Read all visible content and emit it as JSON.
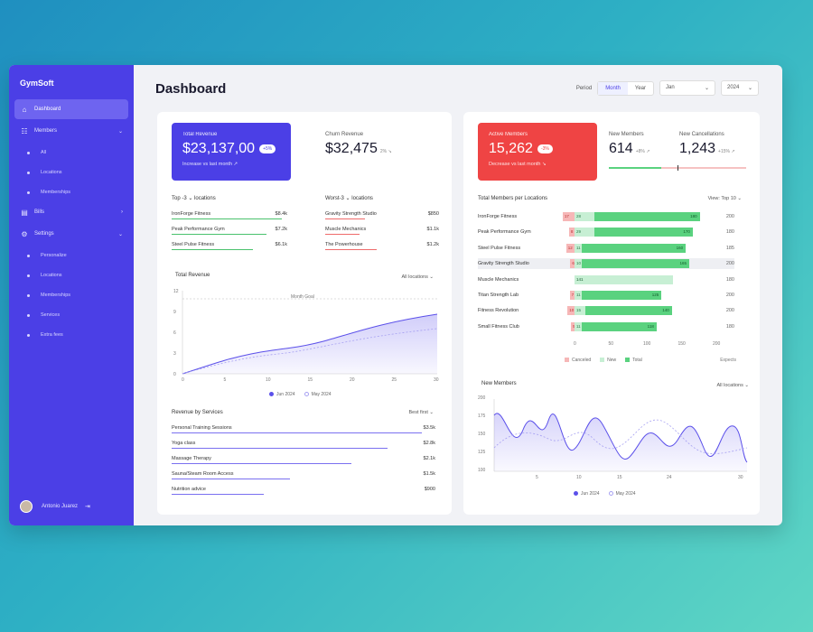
{
  "app": {
    "name": "GymSoft"
  },
  "sidebar": {
    "items": [
      {
        "label": "Dashboard",
        "icon": "home-icon",
        "active": true
      },
      {
        "label": "Members",
        "icon": "members-icon",
        "chev": "⌄"
      },
      {
        "label": "All",
        "sub": true
      },
      {
        "label": "Locations",
        "sub": true
      },
      {
        "label": "Memberships",
        "sub": true
      },
      {
        "label": "Bills",
        "icon": "bills-icon",
        "chev": "›"
      },
      {
        "label": "Settings",
        "icon": "gear-icon",
        "chev": "⌄"
      },
      {
        "label": "Personalize",
        "sub": true
      },
      {
        "label": "Locations",
        "sub": true
      },
      {
        "label": "Memberships",
        "sub": true
      },
      {
        "label": "Services",
        "sub": true
      },
      {
        "label": "Extra fees",
        "sub": true
      }
    ],
    "user": {
      "name": "Antonio Juarez"
    }
  },
  "header": {
    "title": "Dashboard",
    "period_label": "Period",
    "period_options": [
      "Month",
      "Year"
    ],
    "period_selected": "Month",
    "month": "Jan",
    "year": "2024"
  },
  "left": {
    "kpi_total": {
      "label": "Total Revenue",
      "value": "$23,137,00",
      "pill": "+5%",
      "sub": "Increase vs last month ↗"
    },
    "kpi_churn": {
      "label": "Churn Revenue",
      "value": "$32,475",
      "delta": "2% ↘"
    },
    "top3": {
      "title": "Top -3 ⌄ locations",
      "rows": [
        {
          "name": "IronForge Fitness",
          "value": "$8.4k",
          "pct": 0.95
        },
        {
          "name": "Peak Performance Gym",
          "value": "$7.2k",
          "pct": 0.82
        },
        {
          "name": "Steel Pulse Fitness",
          "value": "$6.1k",
          "pct": 0.7
        }
      ]
    },
    "worst3": {
      "title": "Worst-3 ⌄ locations",
      "rows": [
        {
          "name": "Gravity Strength Studio",
          "value": "$850",
          "pct": 0.35
        },
        {
          "name": "Muscle Mechanics",
          "value": "$1.1k",
          "pct": 0.3
        },
        {
          "name": "The Powerhouse",
          "value": "$1.2k",
          "pct": 0.45
        }
      ]
    },
    "revenue_chart": {
      "title": "Total Revenue",
      "filter": "All locations ⌄",
      "annotation": "Month Goal",
      "legend": [
        "Jun 2024",
        "May 2024"
      ],
      "y_ticks": [
        "12",
        "9",
        "6",
        "3",
        "0"
      ],
      "x_ticks": [
        "0",
        "5",
        "10",
        "15",
        "20",
        "25",
        "30"
      ]
    },
    "services": {
      "title": "Revenue by Services",
      "filter": "Best first ⌄",
      "rows": [
        {
          "name": "Personal Training Sessions",
          "value": "$3.5k",
          "pct": 0.95
        },
        {
          "name": "Yoga class",
          "value": "$2.8k",
          "pct": 0.82
        },
        {
          "name": "Massage Therapy",
          "value": "$2.1k",
          "pct": 0.68
        },
        {
          "name": "Sauna/Steam Room Access",
          "value": "$1.5k",
          "pct": 0.45
        },
        {
          "name": "Nutrition advice",
          "value": "$900",
          "pct": 0.35
        }
      ]
    }
  },
  "right": {
    "kpi_active": {
      "label": "Active Members",
      "value": "15,262",
      "pill": "-3%",
      "sub": "Decrease vs last month ↘"
    },
    "kpi_new": {
      "label": "New Members",
      "value": "614",
      "delta": "+8% ↗"
    },
    "kpi_cancel": {
      "label": "New Cancellations",
      "value": "1,243",
      "delta": "+15% ↗"
    },
    "locations": {
      "title": "Total Members per Locations",
      "view": "View: Top 10 ⌄",
      "rows": [
        {
          "name": "IronForge Fitness",
          "cancel": 17,
          "new": 28,
          "total": 180,
          "expects": "200"
        },
        {
          "name": "Peak Performance Gym",
          "cancel": 8,
          "new": 29,
          "total": 170,
          "expects": "180"
        },
        {
          "name": "Steel Pulse Fitness",
          "cancel": 12,
          "new": 11,
          "total": 160,
          "expects": "185"
        },
        {
          "name": "Gravity Strength Studio",
          "cancel": 6,
          "new": 10,
          "total": 165,
          "expects": "200"
        },
        {
          "name": "Muscle Mechanics",
          "cancel": 0,
          "new": 0,
          "total": 141,
          "expects": "180"
        },
        {
          "name": "Titan Strength Lab",
          "cancel": 7,
          "new": 11,
          "total": 125,
          "expects": "200"
        },
        {
          "name": "Fitness Revolution",
          "cancel": 10,
          "new": 15,
          "total": 140,
          "expects": "200"
        },
        {
          "name": "Small Fitness Club",
          "cancel": 5,
          "new": 11,
          "total": 118,
          "expects": "180"
        }
      ],
      "x_ticks": [
        "0",
        "50",
        "100",
        "150",
        "200"
      ],
      "legend": [
        "Canceled",
        "New",
        "Total"
      ],
      "expects_label": "Expects"
    },
    "new_members_chart": {
      "title": "New Members",
      "filter": "All locations ⌄",
      "y_ticks": [
        "200",
        "175",
        "150",
        "125",
        "100"
      ],
      "x_ticks": [
        "5",
        "10",
        "15",
        "24",
        "30"
      ],
      "legend": [
        "Jun 2024",
        "May 2024"
      ]
    }
  },
  "colors": {
    "brand": "#4b3fe6",
    "accent_red": "#ef4444",
    "green": "#5ad27f"
  }
}
